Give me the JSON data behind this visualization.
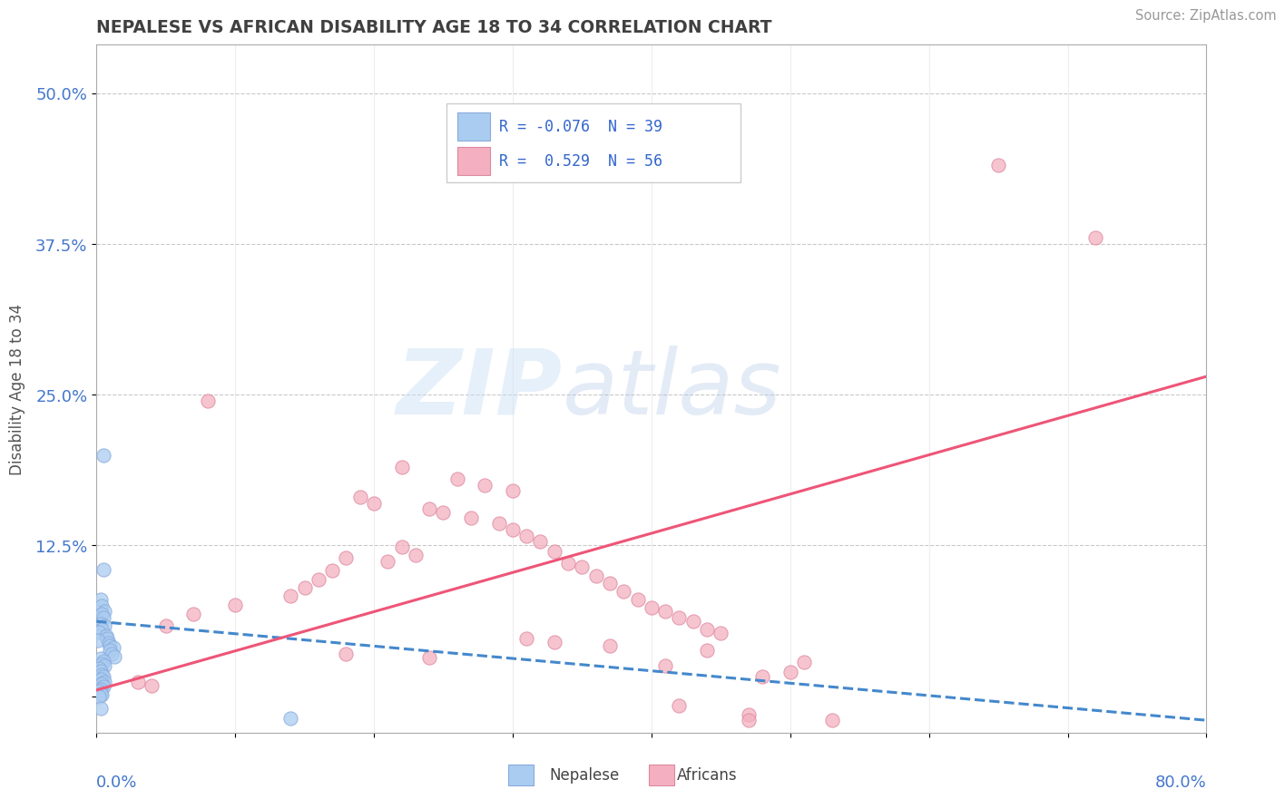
{
  "title": "NEPALESE VS AFRICAN DISABILITY AGE 18 TO 34 CORRELATION CHART",
  "source": "Source: ZipAtlas.com",
  "ylabel": "Disability Age 18 to 34",
  "xlim": [
    0.0,
    0.8
  ],
  "ylim": [
    -0.03,
    0.54
  ],
  "yticks": [
    0.0,
    0.125,
    0.25,
    0.375,
    0.5
  ],
  "ytick_labels": [
    "",
    "12.5%",
    "25.0%",
    "37.5%",
    "50.0%"
  ],
  "xticks": [
    0.0,
    0.1,
    0.2,
    0.3,
    0.4,
    0.5,
    0.6,
    0.7,
    0.8
  ],
  "nepalese_color": "#aaccf0",
  "nepalese_edge": "#88aadd",
  "african_color": "#f4b0c0",
  "african_edge": "#dd88a0",
  "nepalese_scatter": [
    [
      0.005,
      0.2
    ],
    [
      0.005,
      0.105
    ],
    [
      0.003,
      0.08
    ],
    [
      0.004,
      0.075
    ],
    [
      0.006,
      0.07
    ],
    [
      0.004,
      0.068
    ],
    [
      0.005,
      0.065
    ],
    [
      0.003,
      0.06
    ],
    [
      0.006,
      0.058
    ],
    [
      0.004,
      0.055
    ],
    [
      0.002,
      0.053
    ],
    [
      0.007,
      0.05
    ],
    [
      0.008,
      0.048
    ],
    [
      0.001,
      0.046
    ],
    [
      0.009,
      0.044
    ],
    [
      0.01,
      0.042
    ],
    [
      0.012,
      0.04
    ],
    [
      0.01,
      0.038
    ],
    [
      0.011,
      0.035
    ],
    [
      0.013,
      0.033
    ],
    [
      0.003,
      0.031
    ],
    [
      0.005,
      0.029
    ],
    [
      0.004,
      0.027
    ],
    [
      0.006,
      0.025
    ],
    [
      0.002,
      0.023
    ],
    [
      0.003,
      0.021
    ],
    [
      0.004,
      0.018
    ],
    [
      0.005,
      0.016
    ],
    [
      0.003,
      0.014
    ],
    [
      0.006,
      0.012
    ],
    [
      0.004,
      0.01
    ],
    [
      0.005,
      0.008
    ],
    [
      0.003,
      0.006
    ],
    [
      0.002,
      0.004
    ],
    [
      0.003,
      0.002
    ],
    [
      0.004,
      0.001
    ],
    [
      0.002,
      0.0
    ],
    [
      0.14,
      -0.018
    ],
    [
      0.003,
      -0.01
    ]
  ],
  "african_scatter": [
    [
      0.65,
      0.44
    ],
    [
      0.72,
      0.38
    ],
    [
      0.08,
      0.245
    ],
    [
      0.22,
      0.19
    ],
    [
      0.26,
      0.18
    ],
    [
      0.28,
      0.175
    ],
    [
      0.3,
      0.17
    ],
    [
      0.19,
      0.165
    ],
    [
      0.2,
      0.16
    ],
    [
      0.24,
      0.155
    ],
    [
      0.25,
      0.152
    ],
    [
      0.27,
      0.148
    ],
    [
      0.29,
      0.143
    ],
    [
      0.3,
      0.138
    ],
    [
      0.31,
      0.133
    ],
    [
      0.32,
      0.128
    ],
    [
      0.22,
      0.124
    ],
    [
      0.33,
      0.12
    ],
    [
      0.23,
      0.117
    ],
    [
      0.18,
      0.115
    ],
    [
      0.21,
      0.112
    ],
    [
      0.34,
      0.11
    ],
    [
      0.35,
      0.107
    ],
    [
      0.17,
      0.104
    ],
    [
      0.36,
      0.1
    ],
    [
      0.16,
      0.097
    ],
    [
      0.37,
      0.094
    ],
    [
      0.15,
      0.09
    ],
    [
      0.38,
      0.087
    ],
    [
      0.14,
      0.083
    ],
    [
      0.39,
      0.08
    ],
    [
      0.1,
      0.076
    ],
    [
      0.4,
      0.073
    ],
    [
      0.41,
      0.07
    ],
    [
      0.07,
      0.068
    ],
    [
      0.42,
      0.065
    ],
    [
      0.43,
      0.062
    ],
    [
      0.05,
      0.058
    ],
    [
      0.44,
      0.055
    ],
    [
      0.45,
      0.052
    ],
    [
      0.31,
      0.048
    ],
    [
      0.33,
      0.045
    ],
    [
      0.37,
      0.042
    ],
    [
      0.44,
      0.038
    ],
    [
      0.18,
      0.035
    ],
    [
      0.24,
      0.032
    ],
    [
      0.51,
      0.028
    ],
    [
      0.41,
      0.025
    ],
    [
      0.5,
      0.02
    ],
    [
      0.48,
      0.016
    ],
    [
      0.03,
      0.012
    ],
    [
      0.04,
      0.009
    ],
    [
      0.42,
      -0.008
    ],
    [
      0.47,
      -0.015
    ],
    [
      0.47,
      -0.02
    ],
    [
      0.53,
      -0.02
    ]
  ],
  "nepalese_line": {
    "x0": 0.0,
    "y0": 0.062,
    "x1": 0.8,
    "y1": -0.02
  },
  "african_line": {
    "x0": 0.0,
    "y0": 0.005,
    "x1": 0.8,
    "y1": 0.265
  },
  "watermark_zip": "ZIP",
  "watermark_atlas": "atlas",
  "background_color": "#ffffff",
  "grid_color": "#cccccc",
  "grid_dotted_color": "#bbbbbb",
  "title_color": "#404040",
  "axis_label_color": "#4477cc",
  "legend_color": "#3366cc",
  "ylabel_color": "#555555"
}
